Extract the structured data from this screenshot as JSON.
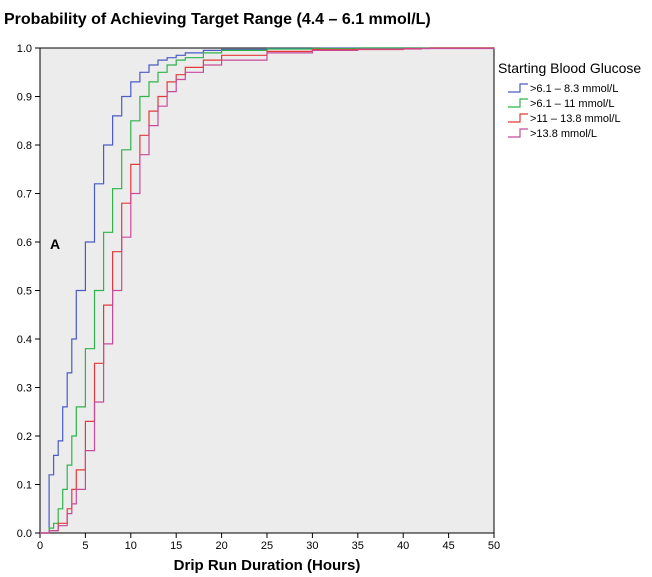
{
  "chart_data": {
    "type": "line",
    "title": "Probability of Achieving Target Range (4.4 – 6.1 mmol/L)",
    "xlabel": "Drip Run Duration (Hours)",
    "ylabel": "",
    "xlim": [
      0,
      50
    ],
    "ylim": [
      0.0,
      1.0
    ],
    "x_ticks": [
      "0",
      "5",
      "10",
      "15",
      "20",
      "25",
      "30",
      "35",
      "40",
      "45",
      "50"
    ],
    "y_ticks": [
      "0.0",
      "0.1",
      "0.2",
      "0.3",
      "0.4",
      "0.5",
      "0.6",
      "0.7",
      "0.8",
      "0.9",
      "1.0"
    ],
    "grid": false,
    "legend_title": "Starting Blood Glucose",
    "legend_position": "right",
    "annotation": "A",
    "series": [
      {
        "name": ">6.1 – 8.3 mmol/L",
        "color": "#4a5bc4",
        "points": [
          [
            0,
            0
          ],
          [
            0.8,
            0
          ],
          [
            1,
            0.12
          ],
          [
            1.5,
            0.16
          ],
          [
            2,
            0.19
          ],
          [
            2.5,
            0.26
          ],
          [
            3,
            0.33
          ],
          [
            3.5,
            0.4
          ],
          [
            4,
            0.5
          ],
          [
            5,
            0.6
          ],
          [
            6,
            0.72
          ],
          [
            7,
            0.8
          ],
          [
            8,
            0.86
          ],
          [
            9,
            0.9
          ],
          [
            10,
            0.93
          ],
          [
            11,
            0.95
          ],
          [
            12,
            0.965
          ],
          [
            13,
            0.975
          ],
          [
            14,
            0.98
          ],
          [
            15,
            0.985
          ],
          [
            16,
            0.99
          ],
          [
            18,
            0.995
          ],
          [
            20,
            0.997
          ],
          [
            25,
            0.999
          ],
          [
            31,
            1.0
          ],
          [
            50,
            1.0
          ]
        ]
      },
      {
        "name": ">6.1 – 11 mmol/L",
        "color": "#2fb34a",
        "points": [
          [
            0,
            0
          ],
          [
            1,
            0.01
          ],
          [
            1.5,
            0.02
          ],
          [
            2,
            0.05
          ],
          [
            2.5,
            0.09
          ],
          [
            3,
            0.14
          ],
          [
            3.5,
            0.2
          ],
          [
            4,
            0.26
          ],
          [
            5,
            0.38
          ],
          [
            6,
            0.5
          ],
          [
            7,
            0.62
          ],
          [
            8,
            0.71
          ],
          [
            9,
            0.79
          ],
          [
            10,
            0.85
          ],
          [
            11,
            0.9
          ],
          [
            12,
            0.93
          ],
          [
            13,
            0.95
          ],
          [
            14,
            0.965
          ],
          [
            15,
            0.975
          ],
          [
            16,
            0.98
          ],
          [
            18,
            0.99
          ],
          [
            20,
            0.995
          ],
          [
            25,
            0.998
          ],
          [
            30,
            0.999
          ],
          [
            35,
            1.0
          ],
          [
            50,
            1.0
          ]
        ]
      },
      {
        "name": ">11 – 13.8 mmol/L",
        "color": "#e23a3a",
        "points": [
          [
            0,
            0
          ],
          [
            1,
            0.005
          ],
          [
            2,
            0.02
          ],
          [
            3,
            0.05
          ],
          [
            3.5,
            0.09
          ],
          [
            4,
            0.13
          ],
          [
            5,
            0.23
          ],
          [
            6,
            0.35
          ],
          [
            7,
            0.47
          ],
          [
            8,
            0.58
          ],
          [
            9,
            0.68
          ],
          [
            10,
            0.76
          ],
          [
            11,
            0.82
          ],
          [
            12,
            0.87
          ],
          [
            13,
            0.9
          ],
          [
            14,
            0.93
          ],
          [
            15,
            0.945
          ],
          [
            16,
            0.96
          ],
          [
            18,
            0.975
          ],
          [
            20,
            0.985
          ],
          [
            25,
            0.993
          ],
          [
            30,
            0.997
          ],
          [
            40,
            0.999
          ],
          [
            43,
            1.0
          ],
          [
            50,
            1.0
          ]
        ]
      },
      {
        "name": ">13.8  mmol/L",
        "color": "#c84b9a",
        "points": [
          [
            0,
            0
          ],
          [
            1,
            0.005
          ],
          [
            2,
            0.015
          ],
          [
            3,
            0.04
          ],
          [
            3.5,
            0.06
          ],
          [
            4,
            0.09
          ],
          [
            5,
            0.17
          ],
          [
            6,
            0.27
          ],
          [
            7,
            0.39
          ],
          [
            8,
            0.5
          ],
          [
            9,
            0.61
          ],
          [
            10,
            0.7
          ],
          [
            11,
            0.78
          ],
          [
            12,
            0.84
          ],
          [
            13,
            0.88
          ],
          [
            14,
            0.91
          ],
          [
            15,
            0.935
          ],
          [
            16,
            0.95
          ],
          [
            18,
            0.965
          ],
          [
            20,
            0.975
          ],
          [
            25,
            0.99
          ],
          [
            30,
            0.995
          ],
          [
            35,
            0.998
          ],
          [
            42,
            0.999
          ],
          [
            50,
            1.0
          ]
        ]
      }
    ]
  }
}
